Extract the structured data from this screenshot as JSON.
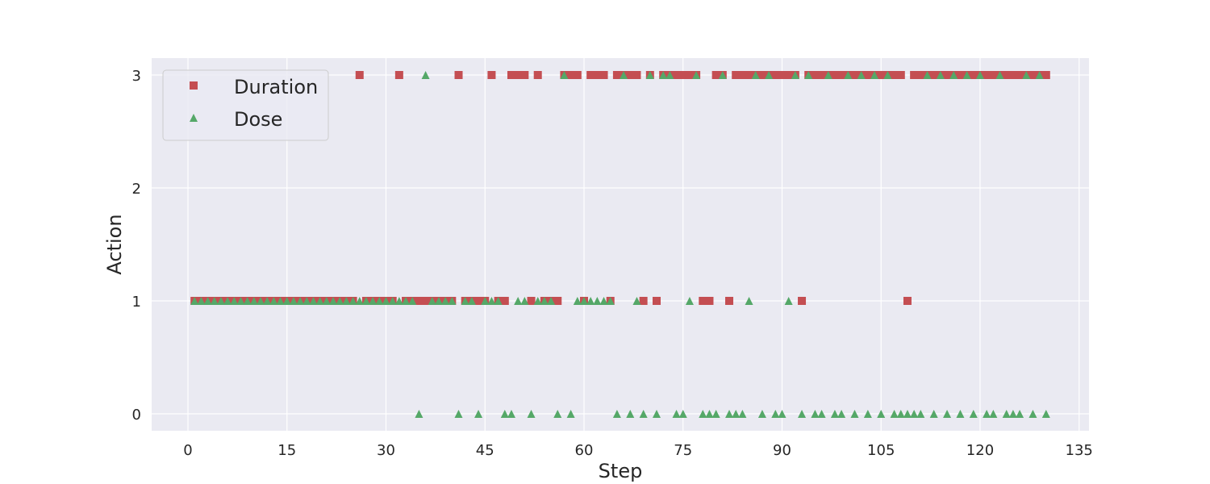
{
  "chart_data": {
    "type": "scatter",
    "title": "",
    "xlabel": "Step",
    "ylabel": "Action",
    "xlim": [
      -5.5,
      136.5
    ],
    "ylim": [
      -0.15,
      3.15
    ],
    "xticks": [
      0,
      15,
      30,
      45,
      60,
      75,
      90,
      105,
      120,
      135
    ],
    "yticks": [
      0,
      1,
      2,
      3
    ],
    "grid": true,
    "legend_position": "upper-left",
    "series": [
      {
        "name": "Duration",
        "marker": "square",
        "color": "#c44e52",
        "points": [
          [
            1,
            1
          ],
          [
            2,
            1
          ],
          [
            3,
            1
          ],
          [
            4,
            1
          ],
          [
            5,
            1
          ],
          [
            6,
            1
          ],
          [
            7,
            1
          ],
          [
            8,
            1
          ],
          [
            9,
            1
          ],
          [
            10,
            1
          ],
          [
            11,
            1
          ],
          [
            12,
            1
          ],
          [
            13,
            1
          ],
          [
            14,
            1
          ],
          [
            15,
            1
          ],
          [
            16,
            1
          ],
          [
            17,
            1
          ],
          [
            18,
            1
          ],
          [
            19,
            1
          ],
          [
            20,
            1
          ],
          [
            21,
            1
          ],
          [
            22,
            1
          ],
          [
            23,
            1
          ],
          [
            24,
            1
          ],
          [
            25,
            1
          ],
          [
            26,
            3
          ],
          [
            27,
            1
          ],
          [
            28,
            1
          ],
          [
            29,
            1
          ],
          [
            30,
            1
          ],
          [
            31,
            1
          ],
          [
            32,
            3
          ],
          [
            33,
            1
          ],
          [
            34,
            1
          ],
          [
            35,
            1
          ],
          [
            36,
            1
          ],
          [
            37,
            1
          ],
          [
            38,
            1
          ],
          [
            39,
            1
          ],
          [
            40,
            1
          ],
          [
            41,
            3
          ],
          [
            42,
            1
          ],
          [
            43,
            1
          ],
          [
            44,
            1
          ],
          [
            45,
            1
          ],
          [
            46,
            3
          ],
          [
            47,
            1
          ],
          [
            48,
            1
          ],
          [
            49,
            3
          ],
          [
            50,
            3
          ],
          [
            51,
            3
          ],
          [
            52,
            1
          ],
          [
            53,
            3
          ],
          [
            54,
            1
          ],
          [
            55,
            1
          ],
          [
            56,
            1
          ],
          [
            57,
            3
          ],
          [
            58,
            3
          ],
          [
            59,
            3
          ],
          [
            60,
            1
          ],
          [
            61,
            3
          ],
          [
            62,
            3
          ],
          [
            63,
            3
          ],
          [
            64,
            1
          ],
          [
            65,
            3
          ],
          [
            66,
            3
          ],
          [
            67,
            3
          ],
          [
            68,
            3
          ],
          [
            69,
            1
          ],
          [
            70,
            3
          ],
          [
            71,
            1
          ],
          [
            72,
            3
          ],
          [
            73,
            3
          ],
          [
            74,
            3
          ],
          [
            75,
            3
          ],
          [
            76,
            3
          ],
          [
            77,
            3
          ],
          [
            78,
            1
          ],
          [
            79,
            1
          ],
          [
            80,
            3
          ],
          [
            81,
            3
          ],
          [
            82,
            1
          ],
          [
            83,
            3
          ],
          [
            84,
            3
          ],
          [
            85,
            3
          ],
          [
            86,
            3
          ],
          [
            87,
            3
          ],
          [
            88,
            3
          ],
          [
            89,
            3
          ],
          [
            90,
            3
          ],
          [
            91,
            3
          ],
          [
            92,
            3
          ],
          [
            93,
            1
          ],
          [
            94,
            3
          ],
          [
            95,
            3
          ],
          [
            96,
            3
          ],
          [
            97,
            3
          ],
          [
            98,
            3
          ],
          [
            99,
            3
          ],
          [
            100,
            3
          ],
          [
            101,
            3
          ],
          [
            102,
            3
          ],
          [
            103,
            3
          ],
          [
            104,
            3
          ],
          [
            105,
            3
          ],
          [
            106,
            3
          ],
          [
            107,
            3
          ],
          [
            108,
            3
          ],
          [
            109,
            1
          ],
          [
            110,
            3
          ],
          [
            111,
            3
          ],
          [
            112,
            3
          ],
          [
            113,
            3
          ],
          [
            114,
            3
          ],
          [
            115,
            3
          ],
          [
            116,
            3
          ],
          [
            117,
            3
          ],
          [
            118,
            3
          ],
          [
            119,
            3
          ],
          [
            120,
            3
          ],
          [
            121,
            3
          ],
          [
            122,
            3
          ],
          [
            123,
            3
          ],
          [
            124,
            3
          ],
          [
            125,
            3
          ],
          [
            126,
            3
          ],
          [
            127,
            3
          ],
          [
            128,
            3
          ],
          [
            129,
            3
          ],
          [
            130,
            3
          ]
        ]
      },
      {
        "name": "Dose",
        "marker": "triangle",
        "color": "#55a868",
        "points": [
          [
            1,
            1
          ],
          [
            2,
            1
          ],
          [
            3,
            1
          ],
          [
            4,
            1
          ],
          [
            5,
            1
          ],
          [
            6,
            1
          ],
          [
            7,
            1
          ],
          [
            8,
            1
          ],
          [
            9,
            1
          ],
          [
            10,
            1
          ],
          [
            11,
            1
          ],
          [
            12,
            1
          ],
          [
            13,
            1
          ],
          [
            14,
            1
          ],
          [
            15,
            1
          ],
          [
            16,
            1
          ],
          [
            17,
            1
          ],
          [
            18,
            1
          ],
          [
            19,
            1
          ],
          [
            20,
            1
          ],
          [
            21,
            1
          ],
          [
            22,
            1
          ],
          [
            23,
            1
          ],
          [
            24,
            1
          ],
          [
            25,
            1
          ],
          [
            26,
            1
          ],
          [
            27,
            1
          ],
          [
            28,
            1
          ],
          [
            29,
            1
          ],
          [
            30,
            1
          ],
          [
            31,
            1
          ],
          [
            32,
            1
          ],
          [
            33,
            1
          ],
          [
            34,
            1
          ],
          [
            35,
            0
          ],
          [
            36,
            3
          ],
          [
            37,
            1
          ],
          [
            38,
            1
          ],
          [
            39,
            1
          ],
          [
            40,
            1
          ],
          [
            41,
            0
          ],
          [
            42,
            1
          ],
          [
            43,
            1
          ],
          [
            44,
            0
          ],
          [
            45,
            1
          ],
          [
            46,
            1
          ],
          [
            47,
            1
          ],
          [
            48,
            0
          ],
          [
            49,
            0
          ],
          [
            50,
            1
          ],
          [
            51,
            1
          ],
          [
            52,
            0
          ],
          [
            53,
            1
          ],
          [
            54,
            1
          ],
          [
            55,
            1
          ],
          [
            56,
            0
          ],
          [
            57,
            3
          ],
          [
            58,
            0
          ],
          [
            59,
            1
          ],
          [
            60,
            1
          ],
          [
            61,
            1
          ],
          [
            62,
            1
          ],
          [
            63,
            1
          ],
          [
            64,
            1
          ],
          [
            65,
            0
          ],
          [
            66,
            3
          ],
          [
            67,
            0
          ],
          [
            68,
            1
          ],
          [
            69,
            0
          ],
          [
            70,
            3
          ],
          [
            71,
            0
          ],
          [
            72,
            3
          ],
          [
            73,
            3
          ],
          [
            74,
            0
          ],
          [
            75,
            0
          ],
          [
            76,
            1
          ],
          [
            77,
            3
          ],
          [
            78,
            0
          ],
          [
            79,
            0
          ],
          [
            80,
            0
          ],
          [
            81,
            3
          ],
          [
            82,
            0
          ],
          [
            83,
            0
          ],
          [
            84,
            0
          ],
          [
            85,
            1
          ],
          [
            86,
            3
          ],
          [
            87,
            0
          ],
          [
            88,
            3
          ],
          [
            89,
            0
          ],
          [
            90,
            0
          ],
          [
            91,
            1
          ],
          [
            92,
            3
          ],
          [
            93,
            0
          ],
          [
            94,
            3
          ],
          [
            95,
            0
          ],
          [
            96,
            0
          ],
          [
            97,
            3
          ],
          [
            98,
            0
          ],
          [
            99,
            0
          ],
          [
            100,
            3
          ],
          [
            101,
            0
          ],
          [
            102,
            3
          ],
          [
            103,
            0
          ],
          [
            104,
            3
          ],
          [
            105,
            0
          ],
          [
            106,
            3
          ],
          [
            107,
            0
          ],
          [
            108,
            0
          ],
          [
            109,
            0
          ],
          [
            110,
            0
          ],
          [
            111,
            0
          ],
          [
            112,
            3
          ],
          [
            113,
            0
          ],
          [
            114,
            3
          ],
          [
            115,
            0
          ],
          [
            116,
            3
          ],
          [
            117,
            0
          ],
          [
            118,
            3
          ],
          [
            119,
            0
          ],
          [
            120,
            3
          ],
          [
            121,
            0
          ],
          [
            122,
            0
          ],
          [
            123,
            3
          ],
          [
            124,
            0
          ],
          [
            125,
            0
          ],
          [
            126,
            0
          ],
          [
            127,
            3
          ],
          [
            128,
            0
          ],
          [
            129,
            3
          ],
          [
            130,
            0
          ]
        ]
      }
    ]
  },
  "colors": {
    "plot_background": "#eaeaf2",
    "grid": "#ffffff",
    "text": "#262626"
  }
}
